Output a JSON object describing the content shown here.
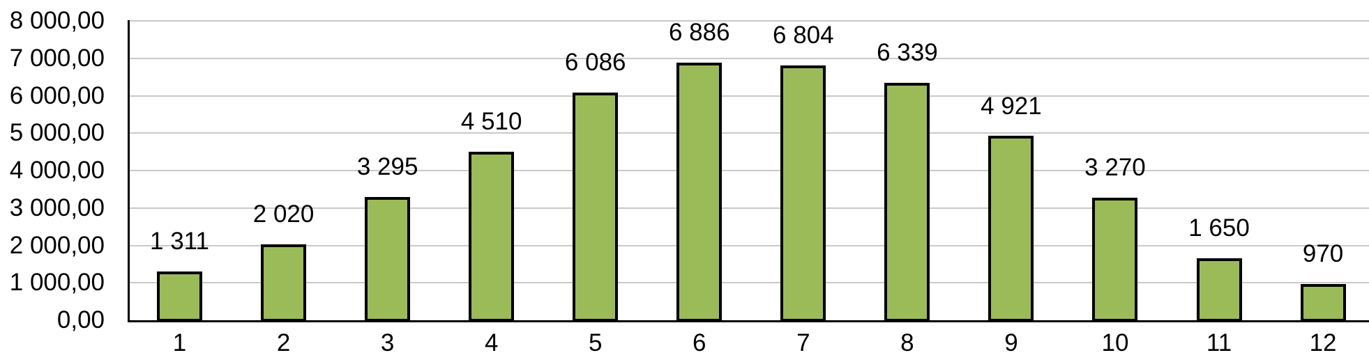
{
  "chart_data": {
    "type": "bar",
    "title": "",
    "xlabel": "",
    "ylabel": "",
    "categories": [
      "1",
      "2",
      "3",
      "4",
      "5",
      "6",
      "7",
      "8",
      "9",
      "10",
      "11",
      "12"
    ],
    "values": [
      1311,
      2020,
      3295,
      4510,
      6086,
      6886,
      6804,
      6339,
      4921,
      3270,
      1650,
      970
    ],
    "data_labels": [
      "1 311",
      "2 020",
      "3 295",
      "4 510",
      "6 086",
      "6 886",
      "6 804",
      "6 339",
      "4 921",
      "3 270",
      "1 650",
      "970"
    ],
    "ylim": [
      0,
      8000
    ],
    "y_tick_interval": 1000,
    "y_tick_labels": [
      "0,00",
      "1 000,00",
      "2 000,00",
      "3 000,00",
      "4 000,00",
      "5 000,00",
      "6 000,00",
      "7 000,00",
      "8 000,00"
    ],
    "grid": true,
    "legend": false,
    "colors": {
      "bar_fill": "#9BBB59",
      "bar_border": "#000000",
      "gridline": "#C9C9C9",
      "axis": "#000000",
      "text": "#000000",
      "background": "#FFFFFF"
    }
  }
}
